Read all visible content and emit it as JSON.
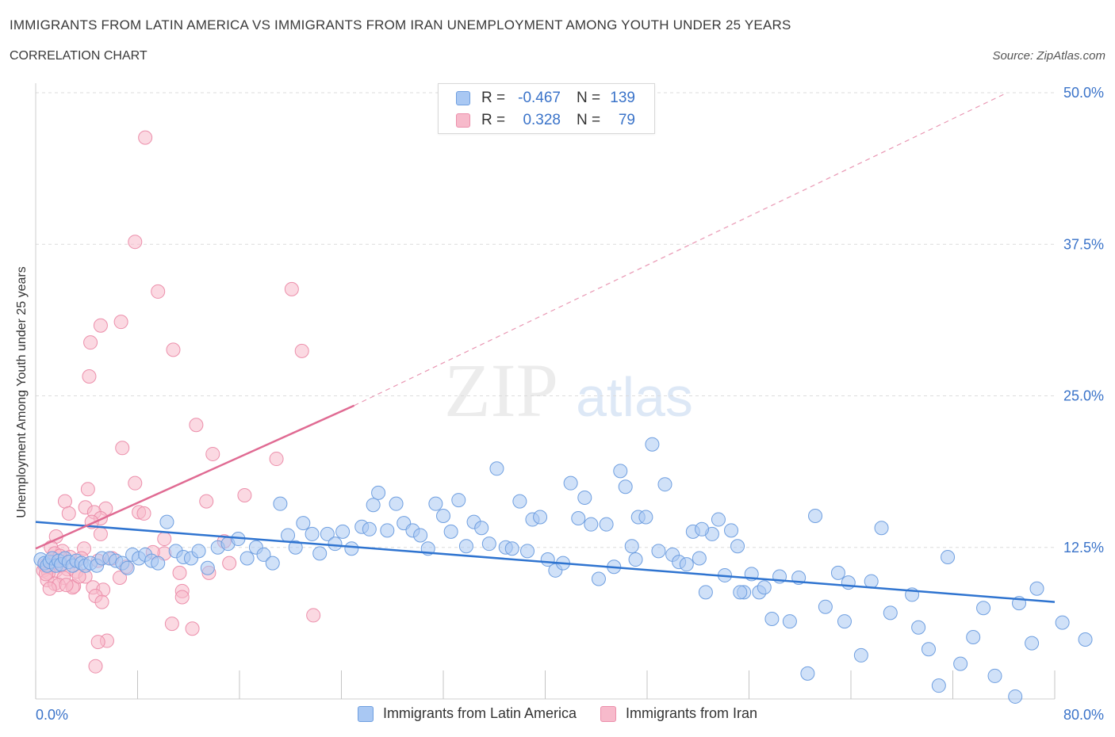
{
  "header": {
    "title": "IMMIGRANTS FROM LATIN AMERICA VS IMMIGRANTS FROM IRAN UNEMPLOYMENT AMONG YOUTH UNDER 25 YEARS",
    "subtitle": "CORRELATION CHART",
    "source": "Source: ZipAtlas.com"
  },
  "watermark": {
    "zip": "ZIP",
    "atlas": "atlas"
  },
  "legend": {
    "rows": [
      {
        "r_label": "R =",
        "r_value": "-0.467",
        "n_label": "N =",
        "n_value": "139",
        "color": "#a9c8f3"
      },
      {
        "r_label": "R =",
        "r_value": "0.328",
        "n_label": "N =",
        "n_value": "79",
        "color": "#f7bacb"
      }
    ]
  },
  "bottom_legend": {
    "items": [
      {
        "label": "Immigrants from Latin America",
        "color": "#a9c8f3"
      },
      {
        "label": "Immigrants from Iran",
        "color": "#f7bacb"
      }
    ]
  },
  "chart_data": {
    "type": "scatter",
    "title": "IMMIGRANTS FROM LATIN AMERICA VS IMMIGRANTS FROM IRAN UNEMPLOYMENT AMONG YOUTH UNDER 25 YEARS",
    "ylabel": "Unemployment Among Youth under 25 years",
    "xlim": [
      0,
      80
    ],
    "ylim": [
      0,
      50
    ],
    "x_tick_labels": [
      "0.0%",
      "80.0%"
    ],
    "y_ticks": [
      12.5,
      25.0,
      37.5,
      50.0
    ],
    "y_tick_labels": [
      "12.5%",
      "25.0%",
      "37.5%",
      "50.0%"
    ],
    "grid": true,
    "legend_position": "top-center",
    "colors": {
      "latin_fill": "#a9c8f3",
      "latin_stroke": "#6f9fe0",
      "latin_line": "#2f74d0",
      "iran_fill": "#f7bacb",
      "iran_stroke": "#ec8fab",
      "iran_line": "#e06b93",
      "axis_label": "#3a73c9"
    },
    "series": [
      {
        "name": "Immigrants from Latin America",
        "trend": {
          "x": [
            0,
            80
          ],
          "y": [
            14.6,
            8.0
          ]
        },
        "points": [
          [
            0.4,
            11.5
          ],
          [
            0.7,
            11.2
          ],
          [
            0.9,
            11.0
          ],
          [
            1.1,
            11.3
          ],
          [
            1.3,
            11.6
          ],
          [
            1.6,
            11.0
          ],
          [
            1.8,
            11.4
          ],
          [
            2.0,
            11.1
          ],
          [
            2.3,
            11.6
          ],
          [
            2.6,
            11.3
          ],
          [
            2.9,
            11.0
          ],
          [
            3.2,
            11.4
          ],
          [
            3.6,
            11.2
          ],
          [
            3.9,
            11.0
          ],
          [
            4.3,
            11.2
          ],
          [
            4.8,
            11.0
          ],
          [
            5.2,
            11.6
          ],
          [
            5.8,
            11.6
          ],
          [
            6.3,
            11.4
          ],
          [
            6.8,
            11.2
          ],
          [
            7.2,
            10.8
          ],
          [
            7.6,
            11.9
          ],
          [
            8.1,
            11.6
          ],
          [
            8.6,
            11.9
          ],
          [
            9.1,
            11.4
          ],
          [
            9.6,
            11.2
          ],
          [
            10.3,
            14.6
          ],
          [
            11.0,
            12.2
          ],
          [
            11.6,
            11.7
          ],
          [
            12.2,
            11.6
          ],
          [
            12.8,
            12.2
          ],
          [
            13.5,
            10.8
          ],
          [
            14.3,
            12.5
          ],
          [
            15.1,
            12.8
          ],
          [
            15.9,
            13.2
          ],
          [
            16.6,
            11.6
          ],
          [
            17.3,
            12.5
          ],
          [
            17.9,
            11.9
          ],
          [
            18.6,
            11.2
          ],
          [
            19.2,
            16.1
          ],
          [
            19.8,
            13.5
          ],
          [
            20.4,
            12.5
          ],
          [
            21.0,
            14.5
          ],
          [
            21.7,
            13.6
          ],
          [
            22.3,
            12.0
          ],
          [
            22.9,
            13.6
          ],
          [
            23.5,
            12.8
          ],
          [
            24.1,
            13.8
          ],
          [
            24.8,
            12.4
          ],
          [
            25.6,
            14.2
          ],
          [
            26.2,
            14.0
          ],
          [
            26.9,
            17.0
          ],
          [
            27.6,
            13.9
          ],
          [
            28.3,
            16.1
          ],
          [
            28.9,
            14.5
          ],
          [
            29.6,
            13.9
          ],
          [
            30.2,
            13.5
          ],
          [
            30.8,
            12.4
          ],
          [
            31.4,
            16.1
          ],
          [
            32.0,
            15.1
          ],
          [
            32.6,
            13.8
          ],
          [
            33.2,
            16.4
          ],
          [
            33.8,
            12.6
          ],
          [
            34.4,
            14.6
          ],
          [
            35.0,
            14.1
          ],
          [
            35.6,
            12.8
          ],
          [
            36.2,
            19.0
          ],
          [
            36.9,
            12.5
          ],
          [
            37.4,
            12.4
          ],
          [
            38.0,
            16.3
          ],
          [
            38.6,
            12.2
          ],
          [
            39.0,
            14.8
          ],
          [
            39.6,
            15.0
          ],
          [
            40.2,
            11.5
          ],
          [
            40.8,
            10.6
          ],
          [
            41.4,
            11.2
          ],
          [
            42.0,
            17.8
          ],
          [
            42.6,
            14.9
          ],
          [
            43.1,
            16.6
          ],
          [
            43.6,
            14.4
          ],
          [
            44.2,
            9.9
          ],
          [
            44.8,
            14.4
          ],
          [
            45.4,
            10.9
          ],
          [
            45.9,
            18.8
          ],
          [
            46.3,
            17.5
          ],
          [
            46.8,
            12.6
          ],
          [
            47.3,
            15.0
          ],
          [
            47.9,
            15.0
          ],
          [
            48.4,
            21.0
          ],
          [
            48.9,
            12.2
          ],
          [
            49.4,
            17.7
          ],
          [
            50.0,
            11.9
          ],
          [
            50.5,
            11.3
          ],
          [
            51.1,
            11.1
          ],
          [
            51.6,
            13.8
          ],
          [
            52.1,
            11.6
          ],
          [
            52.6,
            8.8
          ],
          [
            53.1,
            13.6
          ],
          [
            53.6,
            14.8
          ],
          [
            54.1,
            10.2
          ],
          [
            54.6,
            13.9
          ],
          [
            55.1,
            12.6
          ],
          [
            55.6,
            8.8
          ],
          [
            56.2,
            10.3
          ],
          [
            56.8,
            8.8
          ],
          [
            57.2,
            9.2
          ],
          [
            57.8,
            6.6
          ],
          [
            58.4,
            10.1
          ],
          [
            59.2,
            6.4
          ],
          [
            60.6,
            2.1
          ],
          [
            61.2,
            15.1
          ],
          [
            62.0,
            7.6
          ],
          [
            63.0,
            10.4
          ],
          [
            63.5,
            6.4
          ],
          [
            63.8,
            9.6
          ],
          [
            64.8,
            3.6
          ],
          [
            65.6,
            9.7
          ],
          [
            66.4,
            14.1
          ],
          [
            67.1,
            7.1
          ],
          [
            68.8,
            8.6
          ],
          [
            69.3,
            5.9
          ],
          [
            70.1,
            4.1
          ],
          [
            70.9,
            1.1
          ],
          [
            71.6,
            11.7
          ],
          [
            72.6,
            2.9
          ],
          [
            73.6,
            5.1
          ],
          [
            74.4,
            7.5
          ],
          [
            75.3,
            1.9
          ],
          [
            76.9,
            0.2
          ],
          [
            77.2,
            7.9
          ],
          [
            78.2,
            4.6
          ],
          [
            78.6,
            9.1
          ],
          [
            80.6,
            6.3
          ],
          [
            82.4,
            4.9
          ],
          [
            55.3,
            8.8
          ],
          [
            59.9,
            10.0
          ],
          [
            52.3,
            14.0
          ],
          [
            47.1,
            11.5
          ],
          [
            26.5,
            16.0
          ]
        ]
      },
      {
        "name": "Immigrants from Iran",
        "trend": {
          "x": [
            0,
            25
          ],
          "y": [
            12.4,
            24.2
          ]
        },
        "trend_extension": {
          "x": [
            25,
            80
          ],
          "y": [
            24.2,
            50.0
          ]
        },
        "points": [
          [
            8.6,
            46.3
          ],
          [
            7.8,
            37.7
          ],
          [
            9.6,
            33.6
          ],
          [
            20.1,
            33.8
          ],
          [
            6.7,
            31.1
          ],
          [
            5.1,
            30.8
          ],
          [
            4.3,
            29.4
          ],
          [
            10.8,
            28.8
          ],
          [
            20.9,
            28.7
          ],
          [
            4.2,
            26.6
          ],
          [
            12.6,
            22.6
          ],
          [
            6.8,
            20.7
          ],
          [
            13.9,
            20.2
          ],
          [
            18.9,
            19.8
          ],
          [
            7.8,
            17.8
          ],
          [
            4.1,
            17.3
          ],
          [
            16.4,
            16.8
          ],
          [
            2.3,
            16.3
          ],
          [
            13.4,
            16.3
          ],
          [
            3.9,
            15.8
          ],
          [
            5.5,
            15.7
          ],
          [
            4.6,
            15.4
          ],
          [
            8.1,
            15.4
          ],
          [
            8.5,
            15.3
          ],
          [
            2.6,
            15.3
          ],
          [
            5.1,
            14.9
          ],
          [
            5.1,
            13.6
          ],
          [
            1.6,
            13.4
          ],
          [
            10.1,
            13.2
          ],
          [
            14.8,
            13.0
          ],
          [
            3.8,
            12.4
          ],
          [
            1.2,
            12.5
          ],
          [
            2.1,
            12.2
          ],
          [
            1.5,
            12.0
          ],
          [
            10.1,
            12.0
          ],
          [
            2.7,
            11.7
          ],
          [
            3.6,
            11.6
          ],
          [
            4.9,
            11.4
          ],
          [
            1.4,
            11.3
          ],
          [
            2.0,
            11.0
          ],
          [
            0.7,
            11.0
          ],
          [
            1.2,
            10.9
          ],
          [
            1.6,
            10.6
          ],
          [
            2.5,
            10.7
          ],
          [
            0.6,
            10.6
          ],
          [
            3.2,
            10.5
          ],
          [
            1.0,
            10.4
          ],
          [
            11.3,
            10.4
          ],
          [
            13.6,
            10.4
          ],
          [
            3.9,
            10.1
          ],
          [
            2.2,
            10.0
          ],
          [
            6.6,
            10.0
          ],
          [
            0.9,
            9.8
          ],
          [
            1.5,
            9.5
          ],
          [
            1.8,
            9.4
          ],
          [
            3.0,
            9.3
          ],
          [
            2.9,
            9.2
          ],
          [
            4.5,
            9.2
          ],
          [
            1.1,
            9.1
          ],
          [
            5.3,
            9.0
          ],
          [
            11.5,
            8.9
          ],
          [
            11.5,
            8.4
          ],
          [
            4.7,
            8.5
          ],
          [
            5.2,
            8.0
          ],
          [
            15.2,
            11.2
          ],
          [
            21.8,
            6.9
          ],
          [
            10.7,
            6.2
          ],
          [
            12.3,
            5.8
          ],
          [
            5.6,
            4.8
          ],
          [
            4.9,
            4.7
          ],
          [
            4.7,
            2.7
          ],
          [
            6.0,
            11.6
          ],
          [
            2.4,
            9.4
          ],
          [
            3.4,
            10.1
          ],
          [
            1.9,
            11.8
          ],
          [
            0.8,
            10.3
          ],
          [
            9.2,
            12.1
          ],
          [
            7.1,
            10.9
          ],
          [
            4.4,
            14.6
          ]
        ]
      }
    ]
  }
}
